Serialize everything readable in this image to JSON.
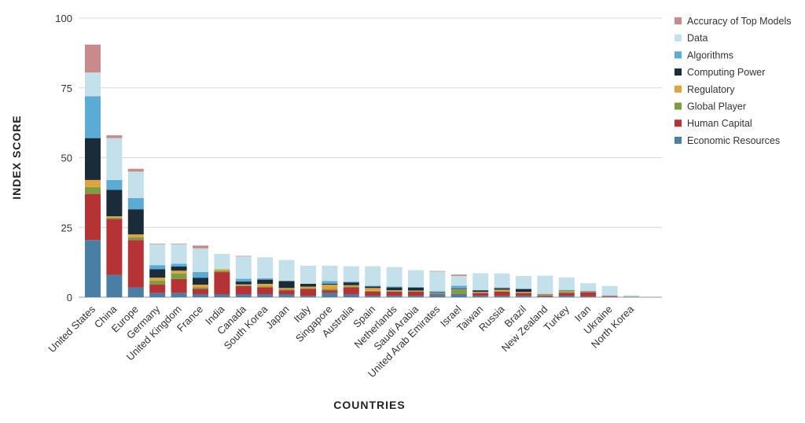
{
  "chart_data": {
    "type": "bar",
    "stacked": true,
    "title": "",
    "xlabel": "COUNTRIES",
    "ylabel": "INDEX SCORE",
    "ylim": [
      0,
      100
    ],
    "yticks": [
      0,
      25,
      50,
      75,
      100
    ],
    "grid": true,
    "legend_position": "right",
    "categories": [
      "United States",
      "China",
      "Europe",
      "Germany",
      "United Kingdom",
      "France",
      "India",
      "Canada",
      "South Korea",
      "Japan",
      "Italy",
      "Singapore",
      "Australia",
      "Spain",
      "Netherlands",
      "Saudi Arabia",
      "United Arab Emirates",
      "Israel",
      "Taiwan",
      "Russia",
      "Brazil",
      "New Zealand",
      "Turkey",
      "Iran",
      "Ukraine",
      "North Korea"
    ],
    "series": [
      {
        "name": "Economic Resources",
        "color": "#4a7fa5",
        "values": [
          20.5,
          8,
          3.5,
          1.5,
          1.5,
          1,
          1,
          1,
          1,
          1,
          0.5,
          1.5,
          1,
          0.5,
          0.5,
          0.5,
          1,
          1,
          0.5,
          0.5,
          0.5,
          0.3,
          0.5,
          0.3,
          0.2,
          0.1
        ]
      },
      {
        "name": "Human Capital",
        "color": "#b53335",
        "values": [
          16.5,
          20,
          17,
          3,
          5,
          2,
          8,
          3,
          2.5,
          1.5,
          2.5,
          1,
          2.5,
          1.5,
          1.5,
          1.5,
          0.2,
          0.2,
          1,
          1.5,
          1,
          0.3,
          1,
          1.5,
          0.3,
          0.1
        ]
      },
      {
        "name": "Global Player",
        "color": "#7d9d43",
        "values": [
          2.5,
          0.5,
          1,
          1.5,
          2,
          0.5,
          0.5,
          0.3,
          0.3,
          0.3,
          0.3,
          0.5,
          0.3,
          0.3,
          0.2,
          0.2,
          0.1,
          1.5,
          0.1,
          0.2,
          0.1,
          0.1,
          0.5,
          0.1,
          0,
          0
        ]
      },
      {
        "name": "Regulatory",
        "color": "#e0a43c",
        "values": [
          2.5,
          0.5,
          1,
          1,
          1,
          1,
          0.5,
          0.3,
          1,
          0.5,
          0.5,
          1.5,
          0.5,
          1,
          0.3,
          0.2,
          0.2,
          0.2,
          0.3,
          0.5,
          0.3,
          0.3,
          0.3,
          0.1,
          0,
          0
        ]
      },
      {
        "name": "Computing Power",
        "color": "#1a2b3a",
        "values": [
          15,
          9.5,
          9,
          3,
          1.5,
          2.5,
          0,
          1,
          1.5,
          2.5,
          1,
          0.3,
          1,
          0.5,
          1,
          1,
          0.2,
          0.2,
          0.5,
          0.5,
          1,
          0.1,
          0.1,
          0.1,
          0,
          0
        ]
      },
      {
        "name": "Algorithms",
        "color": "#5aabd6",
        "values": [
          15,
          3.5,
          4,
          1.5,
          1,
          2,
          0,
          1,
          0.5,
          0,
          0,
          1,
          0.3,
          0.3,
          0.3,
          0.3,
          0.5,
          1,
          0.2,
          0.3,
          0.2,
          0.1,
          0.2,
          0.1,
          0,
          0
        ]
      },
      {
        "name": "Data",
        "color": "#c4e0ea",
        "values": [
          8.5,
          15,
          9.5,
          7.5,
          7,
          8.5,
          5.5,
          8,
          7.5,
          7.5,
          6.5,
          5.5,
          5.5,
          7,
          7,
          6,
          7,
          3.5,
          6,
          5,
          4.5,
          6.5,
          4.5,
          2.8,
          3.5,
          0.5
        ]
      },
      {
        "name": "Accuracy of Top Models",
        "color": "#c88a8a",
        "values": [
          10,
          1,
          1,
          0.2,
          0.2,
          1,
          0,
          0.2,
          0,
          0,
          0,
          0,
          0,
          0,
          0,
          0,
          0.2,
          0.5,
          0,
          0,
          0,
          0,
          0,
          0,
          0,
          0
        ]
      }
    ]
  }
}
